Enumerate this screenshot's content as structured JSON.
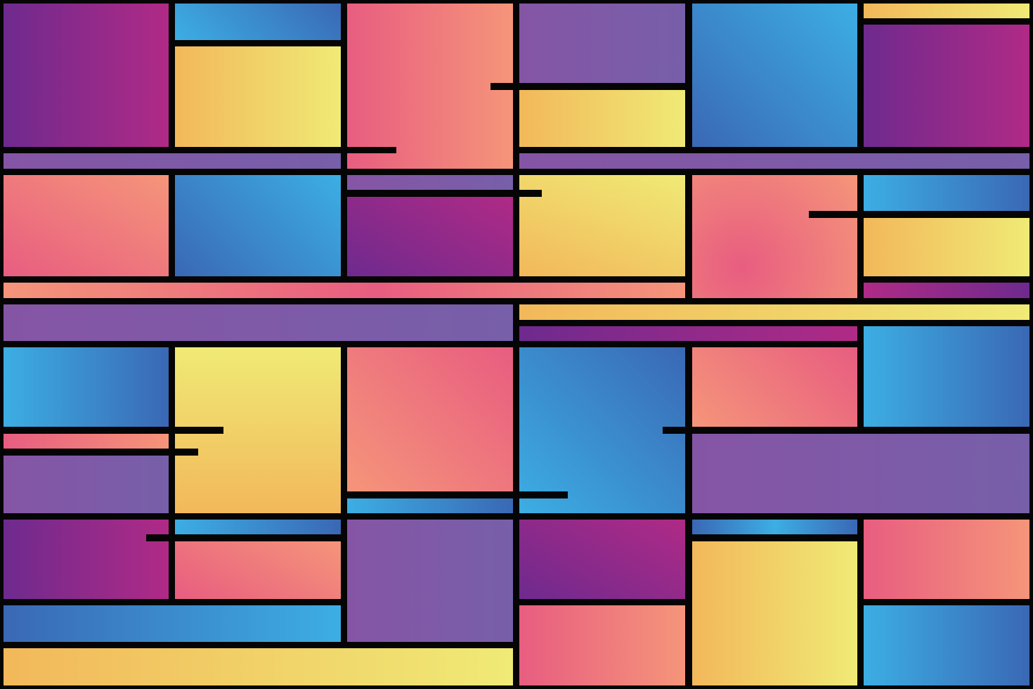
{
  "artwork": {
    "style": "geometric gradient tiles on black grid",
    "palette": {
      "purple_dark": "#6e2a8e",
      "magenta": "#b02a86",
      "violet": "#8555a5",
      "violet_light": "#775fa9",
      "blue_light": "#3caee3",
      "blue_dark": "#3a68b5",
      "yellow": "#f0ea76",
      "orange": "#f2b85a",
      "pink": "#e85d80",
      "salmon": "#f5957a",
      "grid": "#050505"
    }
  }
}
